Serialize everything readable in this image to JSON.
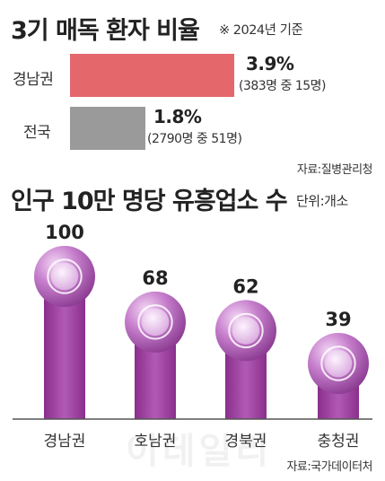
{
  "section1": {
    "title": "3기 매독 환자 비율",
    "note": "※ 2024년 기준",
    "source": "자료:질병관리청"
  },
  "section2": {
    "title": "인구 10만 명당 유흥업소 수",
    "unit": "단위:개소",
    "source": "자료:국가데이터처"
  },
  "watermark": "이데일리",
  "chart_data": [
    {
      "type": "bar",
      "orientation": "horizontal",
      "title": "3기 매독 환자 비율",
      "categories": [
        "경남권",
        "전국"
      ],
      "values": [
        3.9,
        1.8
      ],
      "value_labels": [
        "3.9%",
        "1.8%"
      ],
      "details": [
        "(383명 중 15명)",
        "(2790명 중 51명)"
      ],
      "colors": [
        "#e4676c",
        "#9a9a9a"
      ]
    },
    {
      "type": "bar",
      "title": "인구 10만 명당 유흥업소 수",
      "categories": [
        "경남권",
        "호남권",
        "경북권",
        "충청권"
      ],
      "values": [
        100,
        68,
        62,
        39
      ],
      "value_labels": [
        "100",
        "68",
        "62",
        "39"
      ],
      "ylim": [
        0,
        100
      ],
      "colors": [
        "#9a3e9b",
        "#c98fd0"
      ]
    }
  ]
}
